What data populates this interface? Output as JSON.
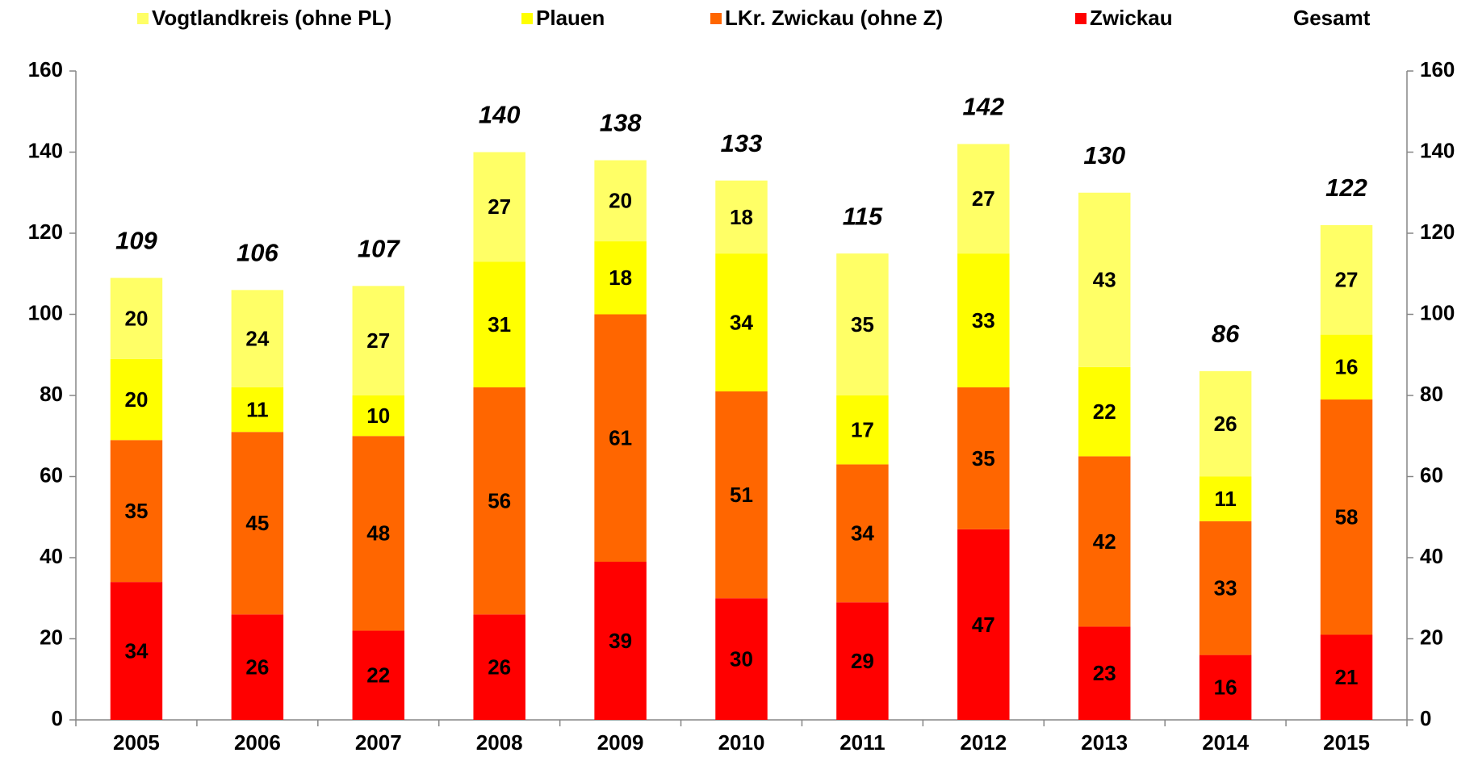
{
  "chart_data": {
    "type": "stacked_bar",
    "categories": [
      "2005",
      "2006",
      "2007",
      "2008",
      "2009",
      "2010",
      "2011",
      "2012",
      "2013",
      "2014",
      "2015"
    ],
    "series": [
      {
        "name": "Zwickau",
        "color": "#ff0000",
        "values": [
          34,
          26,
          22,
          26,
          39,
          30,
          29,
          47,
          23,
          16,
          21
        ]
      },
      {
        "name": "LKr. Zwickau (ohne Z)",
        "color": "#ff6600",
        "values": [
          35,
          45,
          48,
          56,
          61,
          51,
          34,
          35,
          42,
          33,
          58
        ]
      },
      {
        "name": "Plauen",
        "color": "#ffff00",
        "values": [
          20,
          11,
          10,
          31,
          18,
          34,
          17,
          33,
          22,
          11,
          16
        ]
      },
      {
        "name": "Vogtlandkreis (ohne PL)",
        "color": "#ffff66",
        "values": [
          20,
          24,
          27,
          27,
          20,
          18,
          35,
          27,
          43,
          26,
          27
        ]
      },
      {
        "name": "Gesamt",
        "values": [
          109,
          106,
          107,
          140,
          138,
          133,
          115,
          142,
          130,
          86,
          122
        ]
      }
    ],
    "legend_order": [
      "Vogtlandkreis (ohne PL)",
      "Plauen",
      "LKr. Zwickau (ohne Z)",
      "Zwickau",
      "Gesamt"
    ],
    "ylim": [
      0,
      160
    ],
    "yticks": [
      0,
      20,
      40,
      60,
      80,
      100,
      120,
      140,
      160
    ],
    "y2lim": [
      0,
      160
    ],
    "y2ticks": [
      0,
      20,
      40,
      60,
      80,
      100,
      120,
      140,
      160
    ],
    "grid": false,
    "legend": "top"
  }
}
